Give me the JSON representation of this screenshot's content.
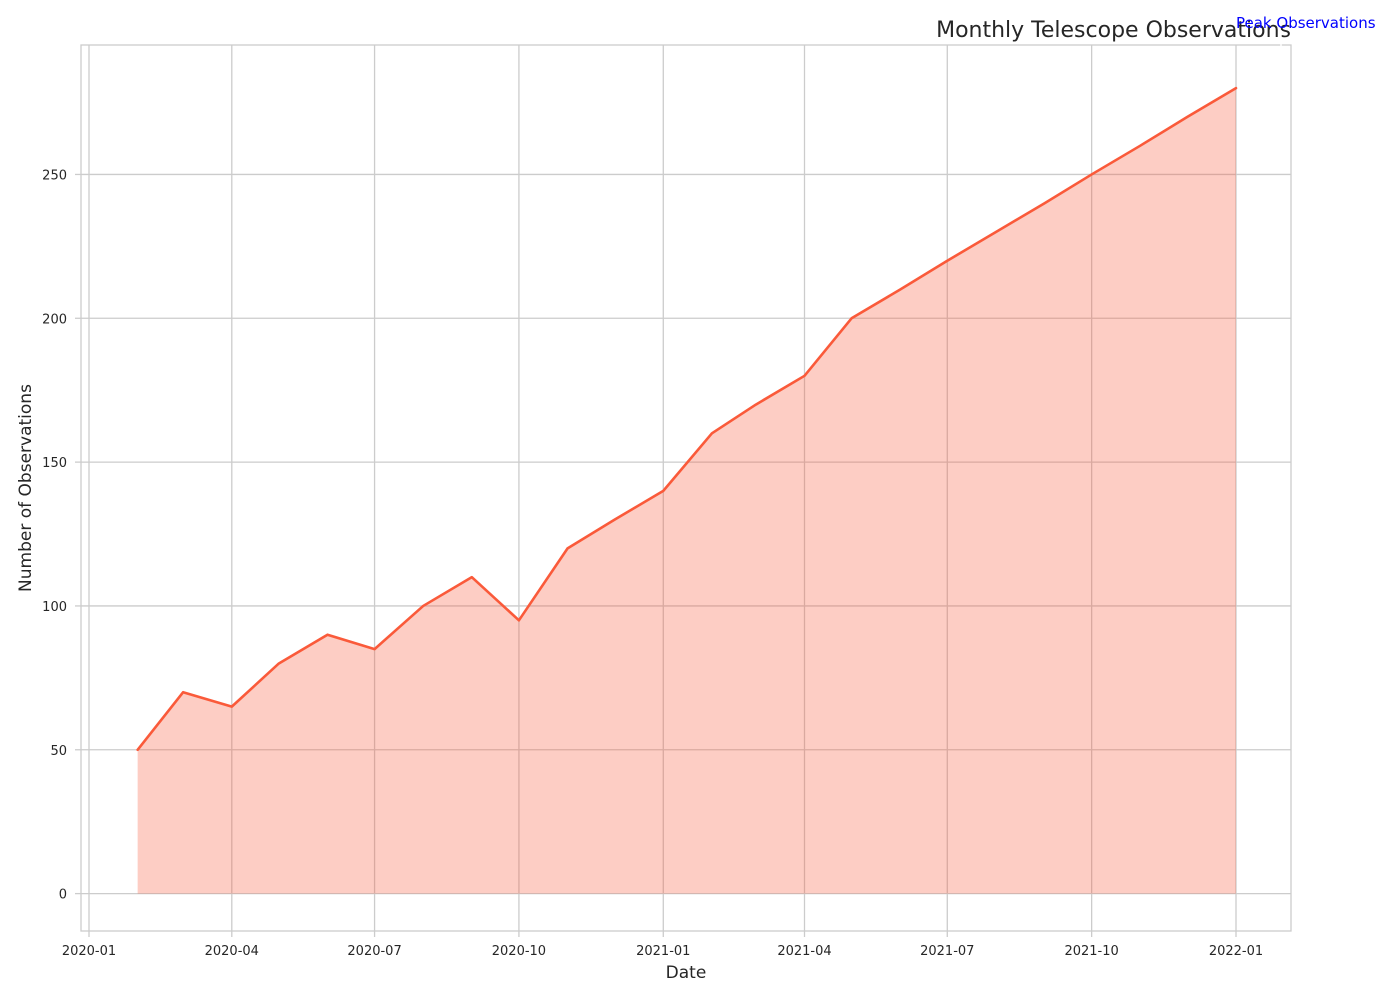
{
  "chart_data": {
    "type": "area",
    "title": "Monthly Telescope Observations",
    "xlabel": "Date",
    "ylabel": "Number of Observations",
    "x": [
      "2020-02-01",
      "2020-03-01",
      "2020-04-01",
      "2020-05-01",
      "2020-06-01",
      "2020-07-01",
      "2020-08-01",
      "2020-09-01",
      "2020-10-01",
      "2020-11-01",
      "2020-12-01",
      "2021-01-01",
      "2021-02-01",
      "2021-03-01",
      "2021-04-01",
      "2021-05-01",
      "2021-06-01",
      "2021-07-01",
      "2021-08-01",
      "2021-09-01",
      "2021-10-01",
      "2021-11-01",
      "2021-12-01",
      "2022-01-01"
    ],
    "series": [
      {
        "values": [
          50,
          70,
          65,
          80,
          90,
          85,
          100,
          110,
          95,
          120,
          130,
          140,
          160,
          170,
          180,
          200,
          210,
          220,
          230,
          240,
          250,
          260,
          270,
          280
        ]
      }
    ],
    "xlim": [
      "2020-01-01",
      "2022-01-01"
    ],
    "ylim": [
      -13,
      295
    ],
    "x_ticks": [
      "2020-01",
      "2020-04",
      "2020-07",
      "2020-10",
      "2021-01",
      "2021-04",
      "2021-07",
      "2021-10",
      "2022-01"
    ],
    "y_ticks": [
      0,
      50,
      100,
      150,
      200,
      250
    ],
    "grid": true,
    "annotation": {
      "text": "Peak Observations",
      "x": "2022-01-01",
      "y": 280,
      "color": "#0000ff"
    },
    "colors": {
      "line": "#fa5a3a",
      "fill": "#fdc9be",
      "grid": "#cccccc",
      "spine": "#cccccc"
    }
  }
}
